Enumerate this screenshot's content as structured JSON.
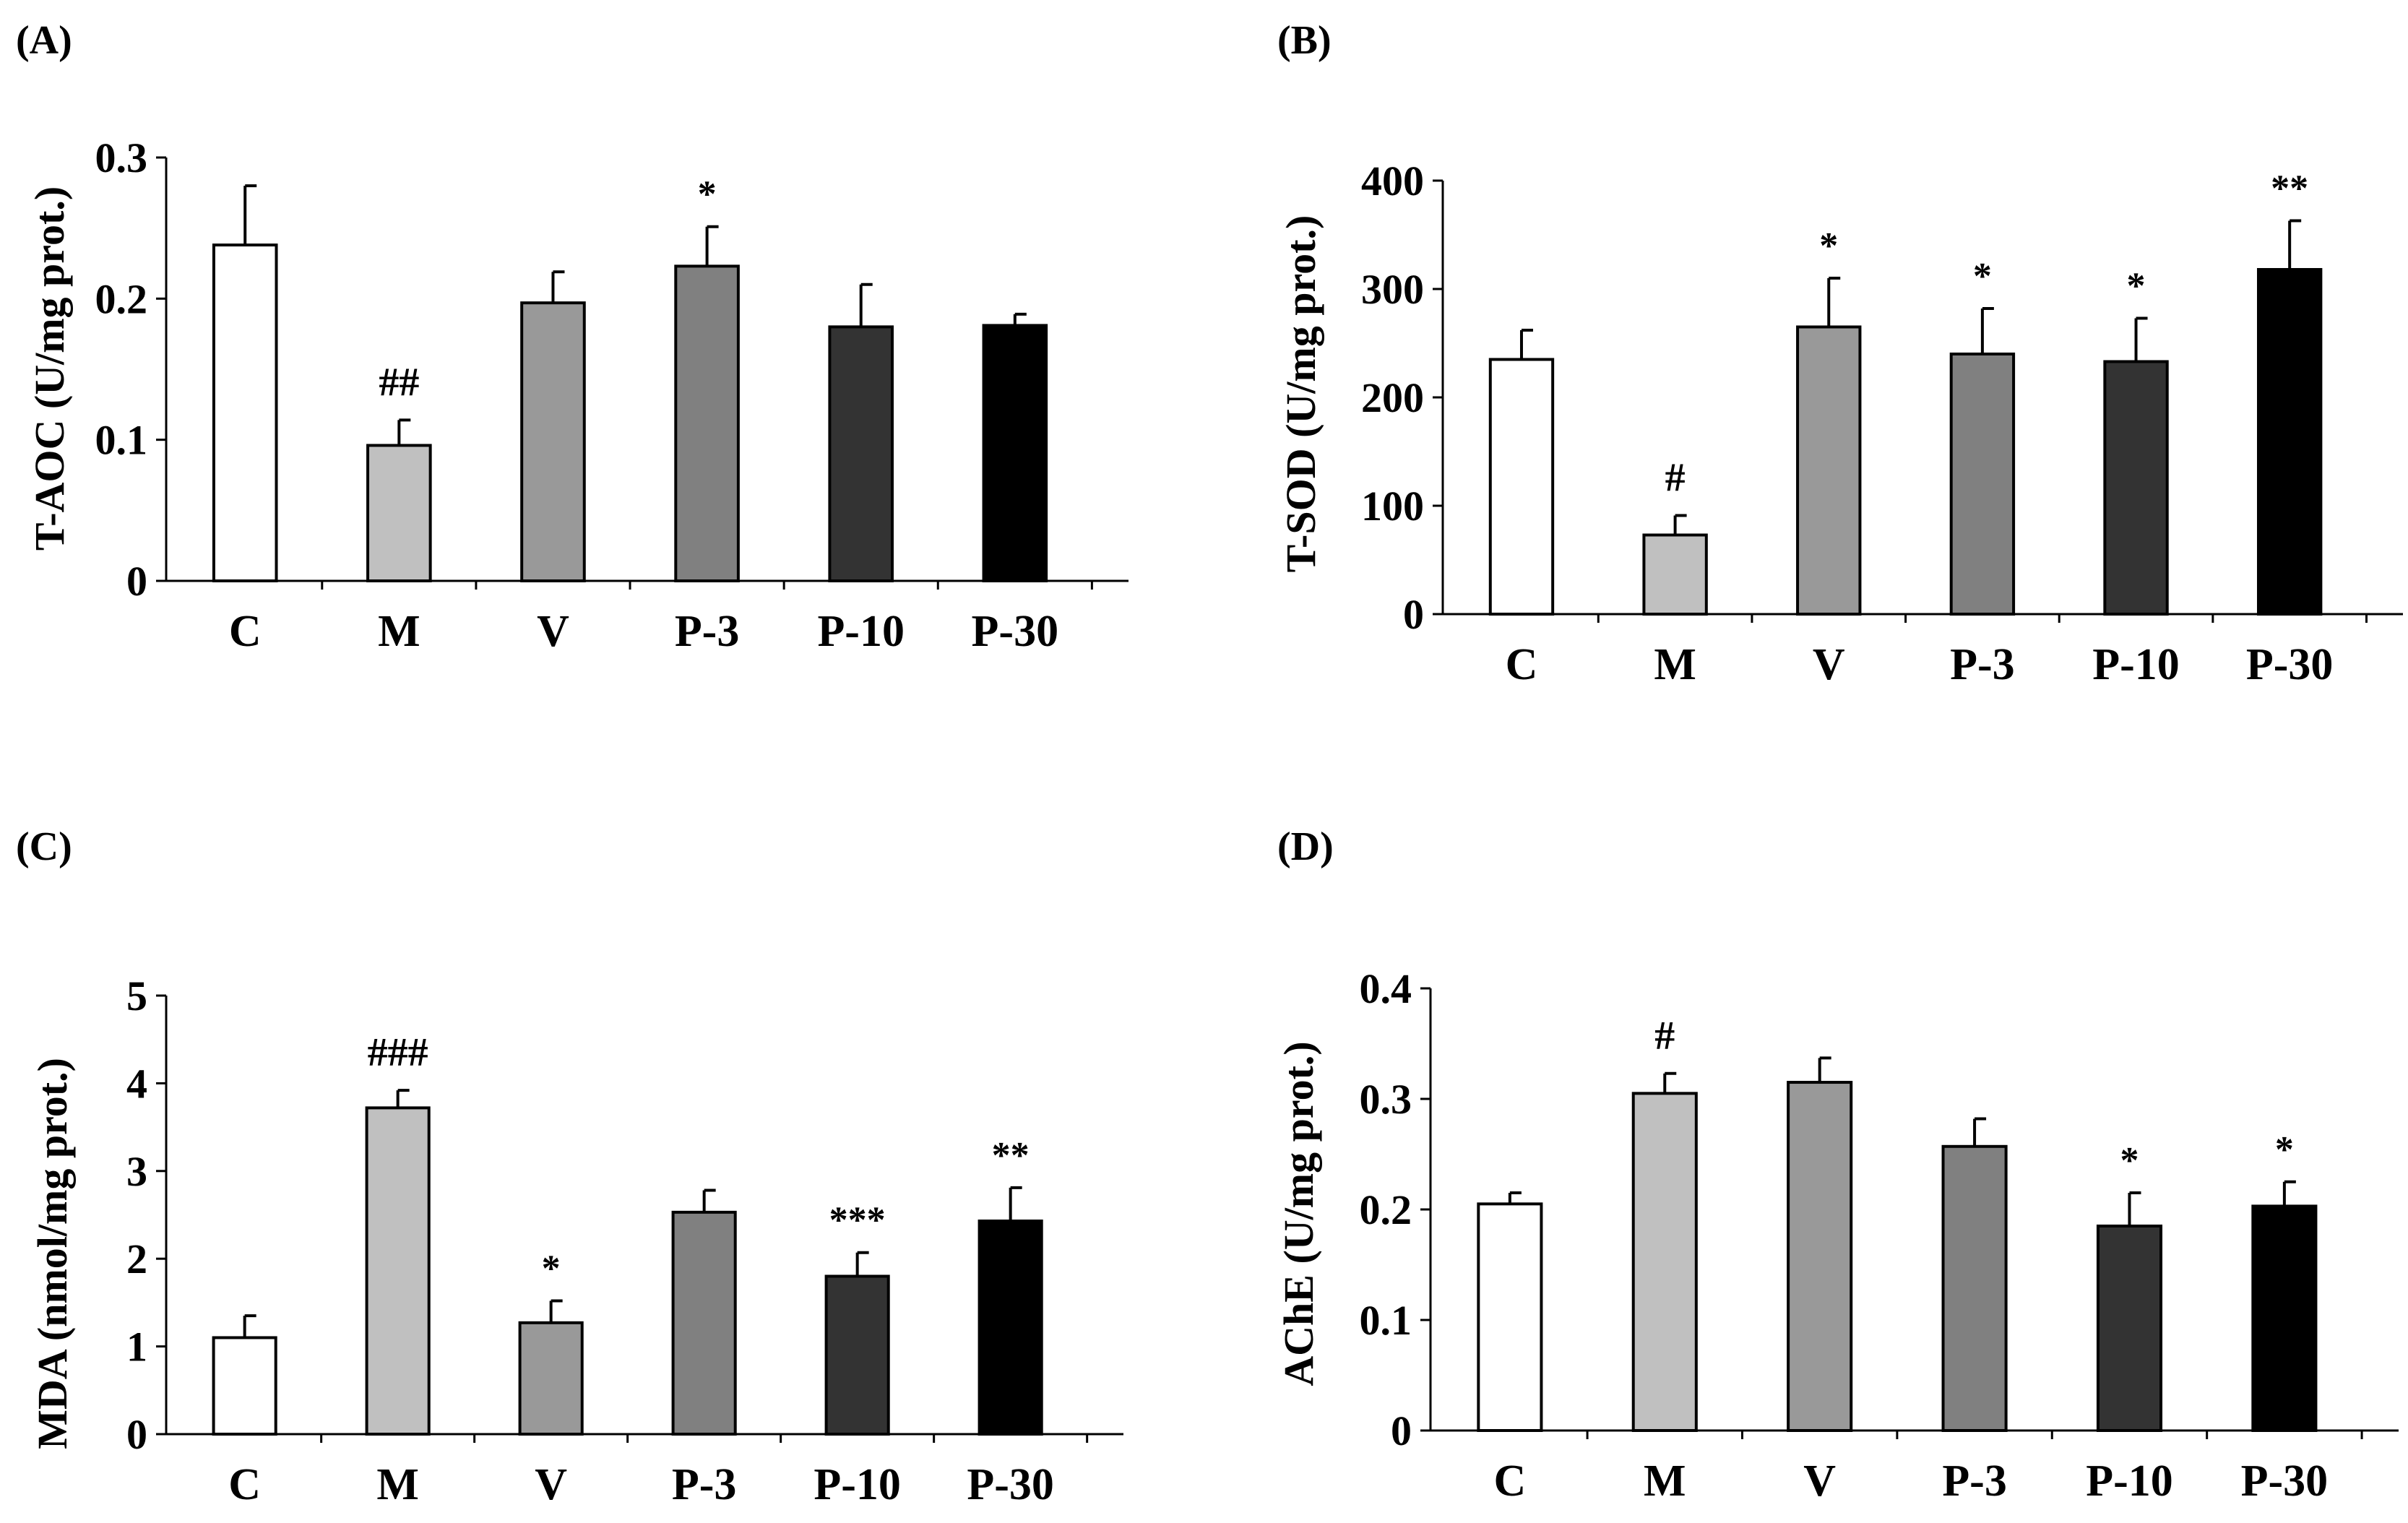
{
  "chart_data": [
    {
      "type": "bar",
      "panel": "(A)",
      "ylabel": "T-AOC (U/mg prot.)",
      "xlabel": "",
      "categories": [
        "C",
        "M",
        "V",
        "P-3",
        "P-10",
        "P-30"
      ],
      "values": [
        0.238,
        0.096,
        0.197,
        0.223,
        0.18,
        0.181
      ],
      "errors": [
        0.042,
        0.018,
        0.022,
        0.028,
        0.03,
        0.008
      ],
      "annotations": [
        "",
        "##",
        "",
        "*",
        "",
        ""
      ],
      "ylim": [
        0,
        0.3
      ],
      "yticks": [
        0,
        0.1,
        0.2,
        0.3
      ],
      "ytick_labels": [
        "0",
        "0.1",
        "0.2",
        "0.3"
      ]
    },
    {
      "type": "bar",
      "panel": "(B)",
      "ylabel": "T-SOD (U/mg prot.)",
      "xlabel": "",
      "categories": [
        "C",
        "M",
        "V",
        "P-3",
        "P-10",
        "P-30"
      ],
      "values": [
        235,
        73,
        265,
        240,
        233,
        318
      ],
      "errors": [
        27,
        18,
        45,
        42,
        40,
        45
      ],
      "annotations": [
        "",
        "#",
        "*",
        "*",
        "*",
        "**"
      ],
      "ylim": [
        0,
        400
      ],
      "yticks": [
        0,
        100,
        200,
        300,
        400
      ],
      "ytick_labels": [
        "0",
        "100",
        "200",
        "300",
        "400"
      ]
    },
    {
      "type": "bar",
      "panel": "(C)",
      "ylabel": "MDA (nmol/mg prot.)",
      "xlabel": "",
      "categories": [
        "C",
        "M",
        "V",
        "P-3",
        "P-10",
        "P-30"
      ],
      "values": [
        1.1,
        3.72,
        1.27,
        2.53,
        1.8,
        2.43
      ],
      "errors": [
        0.25,
        0.2,
        0.25,
        0.25,
        0.27,
        0.38
      ],
      "annotations": [
        "",
        "###",
        "*",
        "",
        "***",
        "**"
      ],
      "ylim": [
        0,
        5
      ],
      "yticks": [
        0,
        1,
        2,
        3,
        4,
        5
      ],
      "ytick_labels": [
        "0",
        "1",
        "2",
        "3",
        "4",
        "5"
      ]
    },
    {
      "type": "bar",
      "panel": "(D)",
      "ylabel": "AChE (U/mg prot.)",
      "xlabel": "",
      "categories": [
        "C",
        "M",
        "V",
        "P-3",
        "P-10",
        "P-30"
      ],
      "values": [
        0.205,
        0.305,
        0.315,
        0.257,
        0.185,
        0.203
      ],
      "errors": [
        0.01,
        0.018,
        0.022,
        0.025,
        0.03,
        0.022
      ],
      "annotations": [
        "",
        "#",
        "",
        "",
        "*",
        "*"
      ],
      "ylim": [
        0,
        0.4
      ],
      "yticks": [
        0,
        0.1,
        0.2,
        0.3,
        0.4
      ],
      "ytick_labels": [
        "0",
        "0.1",
        "0.2",
        "0.3",
        "0.4"
      ]
    }
  ],
  "colors": {
    "bar_fills": [
      "#ffffff",
      "#c0c0c0",
      "#999999",
      "#808080",
      "#333333",
      "#000000"
    ],
    "stroke": "#000000"
  }
}
